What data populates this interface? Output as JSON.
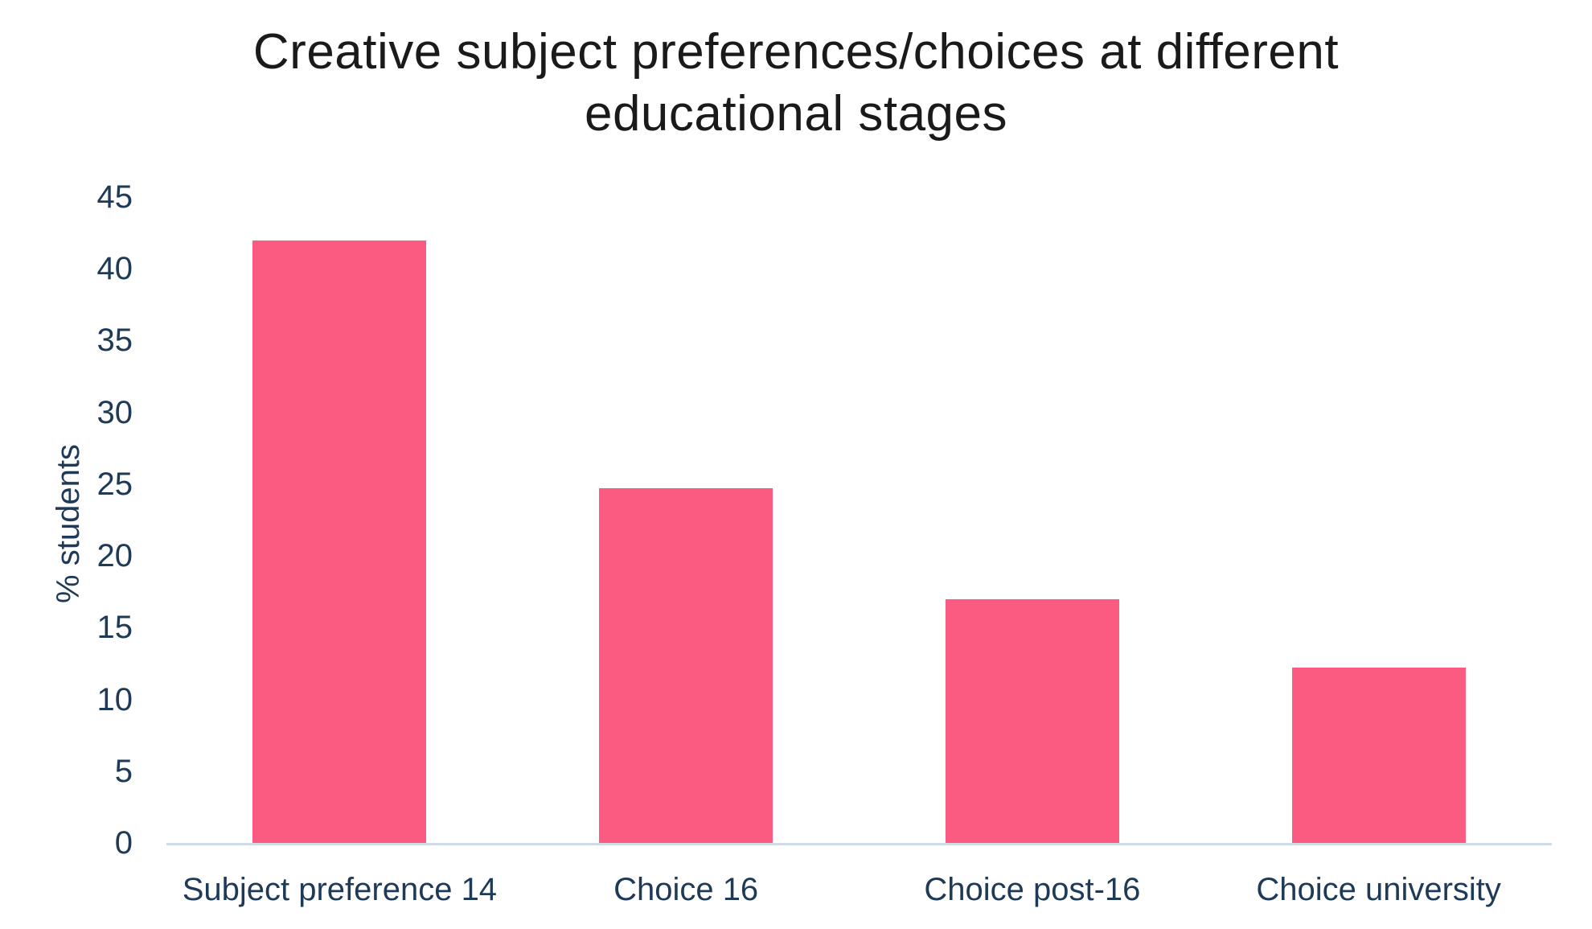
{
  "chart_data": {
    "type": "bar",
    "title": "Creative subject preferences/choices at different educational stages",
    "title_lines": [
      "Creative subject preferences/choices at different",
      "educational stages"
    ],
    "ylabel": "% students",
    "xlabel": "",
    "categories": [
      "Subject preference 14",
      "Choice 16",
      "Choice post-16",
      "Choice university"
    ],
    "values": [
      42,
      24.7,
      17,
      12.2
    ],
    "ylim": [
      0,
      45
    ],
    "yticks": [
      0,
      5,
      10,
      15,
      20,
      25,
      30,
      35,
      40,
      45
    ],
    "grid": false,
    "legend": "none",
    "colors": {
      "bar": "#FB5B81",
      "axis_text": "#1E3A56",
      "title_text": "#1A1A1A",
      "axis_line": "#CFDCE6",
      "background": "#FFFFFF"
    }
  }
}
